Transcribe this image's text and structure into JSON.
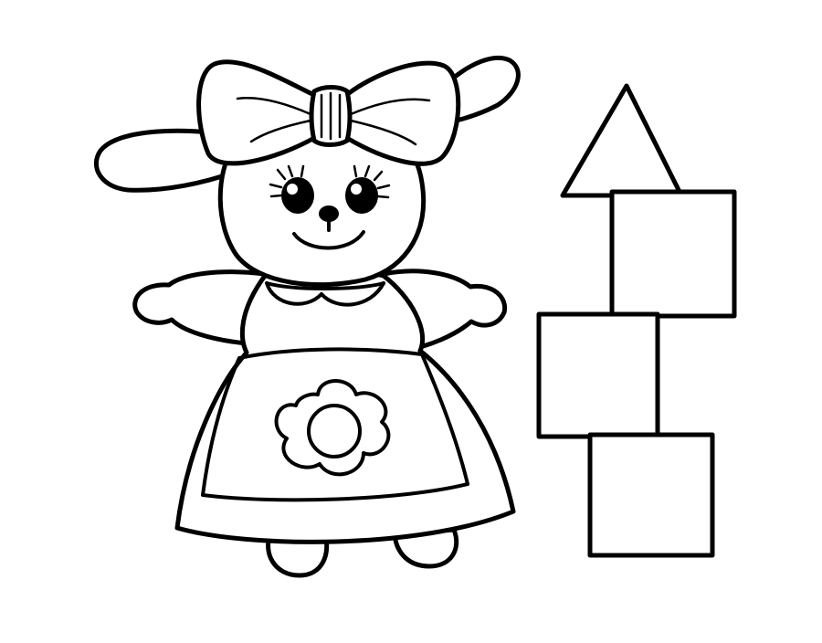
{
  "page": {
    "background": "#ffffff",
    "ink_color": "#000000"
  },
  "illustration": {
    "style": "black-and-white coloring page line art",
    "subjects": [
      "bunny-doll",
      "block-tower"
    ],
    "bunny_doll": {
      "parts": [
        "ears",
        "bow",
        "head",
        "eyes",
        "nose",
        "smile",
        "arms",
        "dress",
        "collar",
        "apron",
        "flower",
        "feet"
      ]
    },
    "block_tower": {
      "shapes": [
        "triangle",
        "square",
        "square",
        "square"
      ]
    }
  }
}
